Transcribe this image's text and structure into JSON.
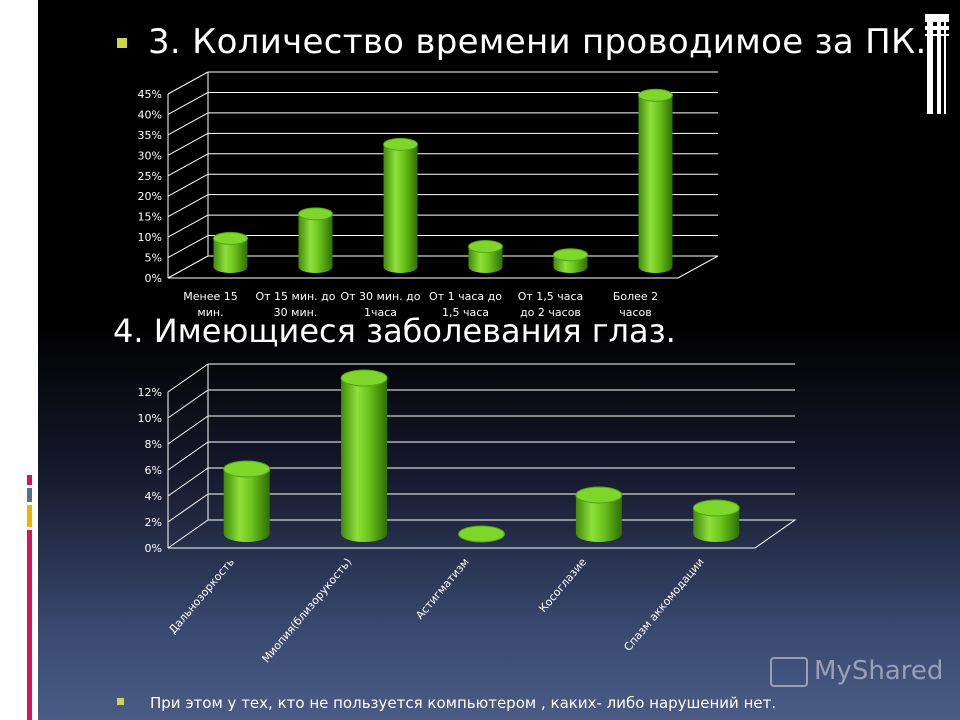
{
  "slide": {
    "title1": "3. Количество времени проводимое за ПК.",
    "title2": "4. Имеющиеся заболевания глаз.",
    "note": "При этом у тех, кто не пользуется компьютером , каких- либо нарушений нет.",
    "logo": "MyShared",
    "bar_color": "#6cc41c",
    "bullet_color": "#c8d84a"
  },
  "chart_data": [
    {
      "type": "bar",
      "categories": [
        [
          "Менее 15",
          "мин."
        ],
        [
          "От 15 мин. до",
          "30 мин."
        ],
        [
          "От 30 мин. до",
          "1часа"
        ],
        [
          "От 1 часа до",
          "1,5 часа"
        ],
        [
          "От 1,5 часа",
          "до 2 часов"
        ],
        [
          "Более 2",
          "часов"
        ]
      ],
      "values": [
        7,
        13,
        30,
        5,
        3,
        42
      ],
      "ylim": [
        0,
        45
      ],
      "yticks": [
        "0%",
        "5%",
        "10%",
        "15%",
        "20%",
        "25%",
        "30%",
        "35%",
        "40%",
        "45%"
      ],
      "grid": true,
      "style": "3d-cylinder"
    },
    {
      "type": "bar",
      "categories": [
        "Дальнозоркость",
        "Миопия(близорукость)",
        "Астигматизм",
        "Косоглазие",
        "Спазм аккомодации"
      ],
      "values": [
        5,
        12,
        0,
        3,
        2
      ],
      "ylim": [
        0,
        12
      ],
      "yticks": [
        "0%",
        "2%",
        "4%",
        "6%",
        "8%",
        "10%",
        "12%"
      ],
      "grid": true,
      "style": "3d-cylinder"
    }
  ]
}
